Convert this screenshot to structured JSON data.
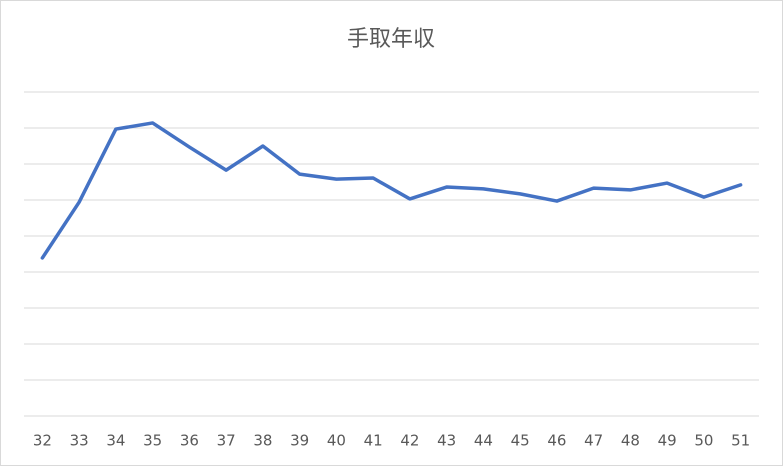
{
  "chart_data": {
    "type": "line",
    "title": "手取年収",
    "x": [
      32,
      33,
      34,
      35,
      36,
      37,
      38,
      39,
      40,
      41,
      42,
      43,
      44,
      45,
      46,
      47,
      48,
      49,
      50,
      51
    ],
    "xlim": [
      31.5,
      51.5
    ],
    "xticks": [
      32,
      33,
      34,
      35,
      36,
      37,
      38,
      39,
      40,
      41,
      42,
      43,
      44,
      45,
      46,
      47,
      48,
      49,
      50,
      51
    ],
    "series": [
      {
        "color": "#4472c4",
        "values": [
          4.39,
          5.94,
          7.97,
          8.14,
          7.47,
          6.83,
          7.5,
          6.72,
          6.58,
          6.61,
          6.03,
          6.36,
          6.31,
          6.17,
          5.97,
          6.33,
          6.28,
          6.47,
          6.08,
          6.42
        ]
      }
    ],
    "ylim": [
      0,
      9
    ],
    "yticks": [
      0,
      1,
      2,
      3,
      4,
      5,
      6,
      7,
      8,
      9
    ],
    "grid": true
  }
}
